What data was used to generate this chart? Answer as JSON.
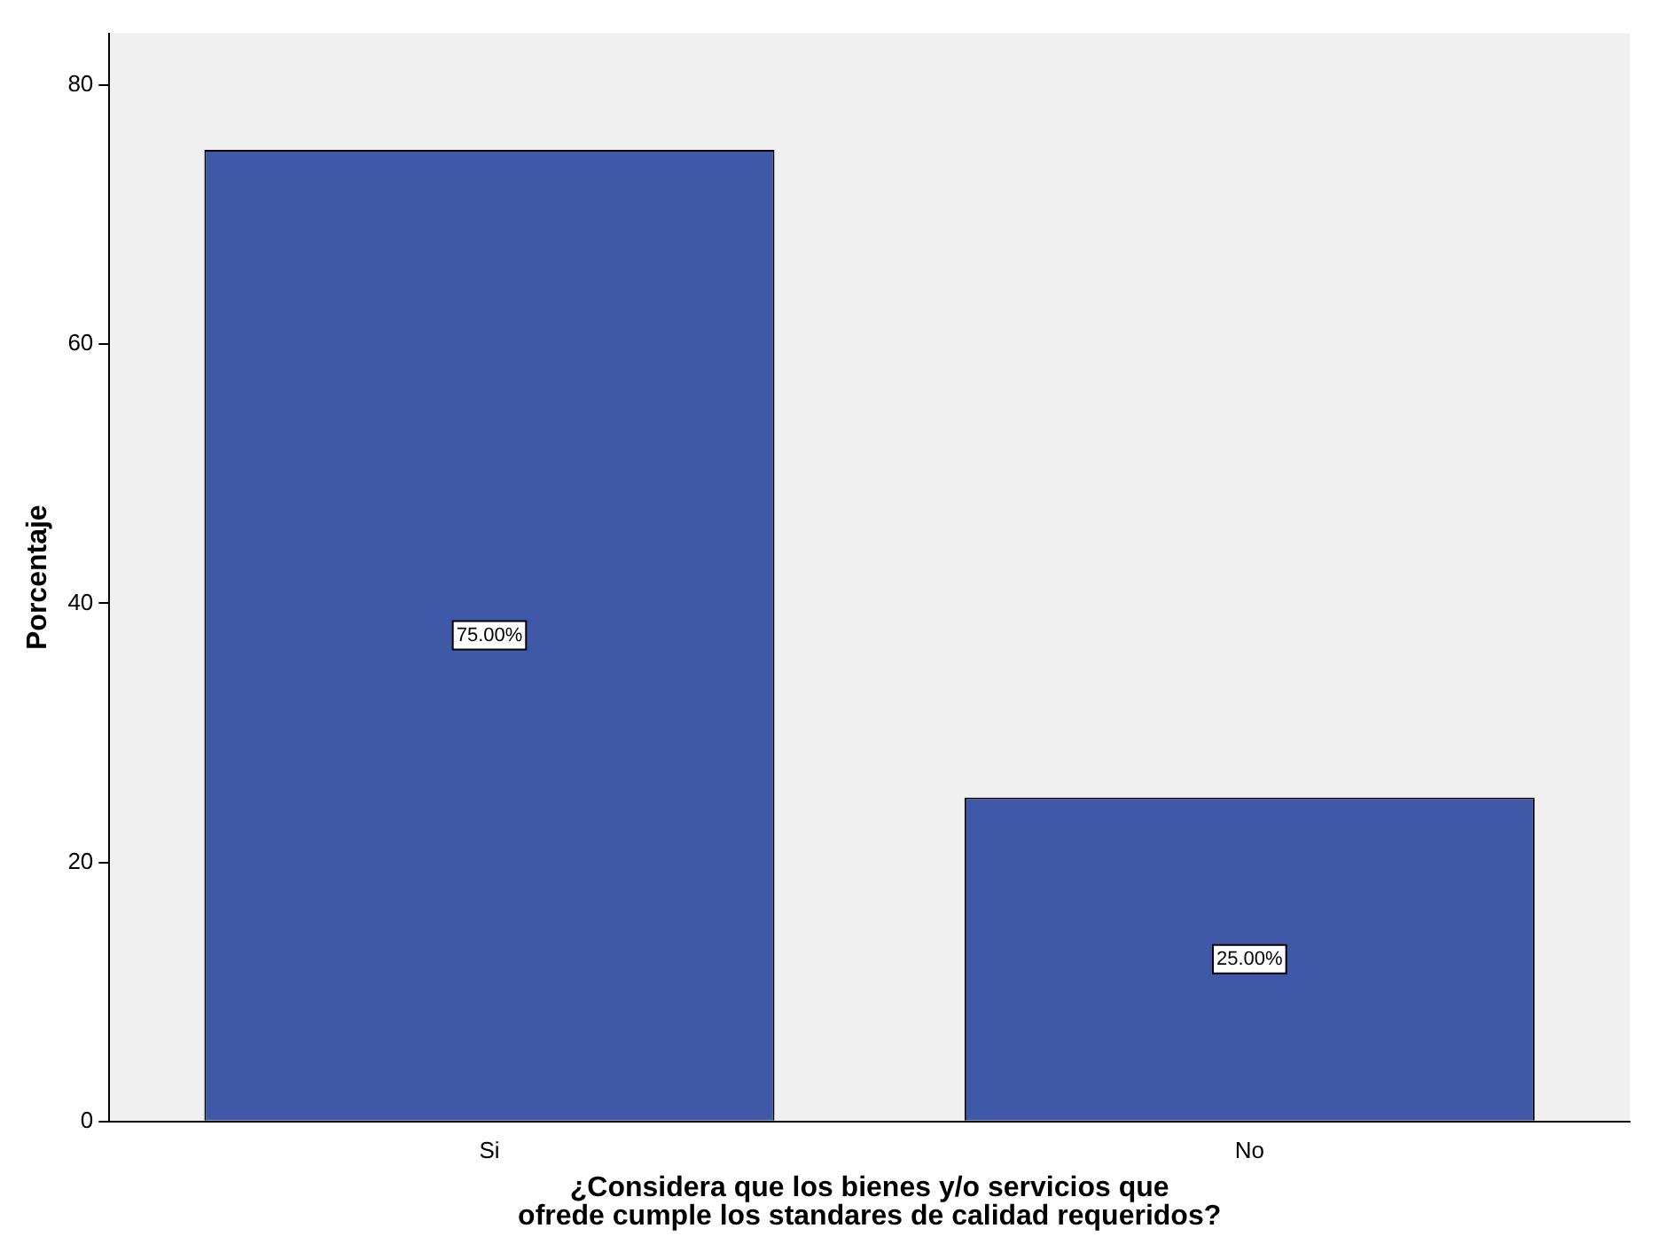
{
  "chart_data": {
    "type": "bar",
    "xlabel": "¿Considera que los bienes y/o servicios que ofrede cumple los standares de calidad requeridos?",
    "ylabel": "Porcentaje",
    "categories": [
      "Si",
      "No"
    ],
    "values": [
      75,
      25
    ],
    "value_labels": [
      "75.00%",
      "25.00%"
    ],
    "color": "#3f58a8",
    "ylim": [
      0,
      84
    ],
    "yticks": [
      0,
      20,
      40,
      60,
      80
    ],
    "grid": false,
    "legend": false
  }
}
